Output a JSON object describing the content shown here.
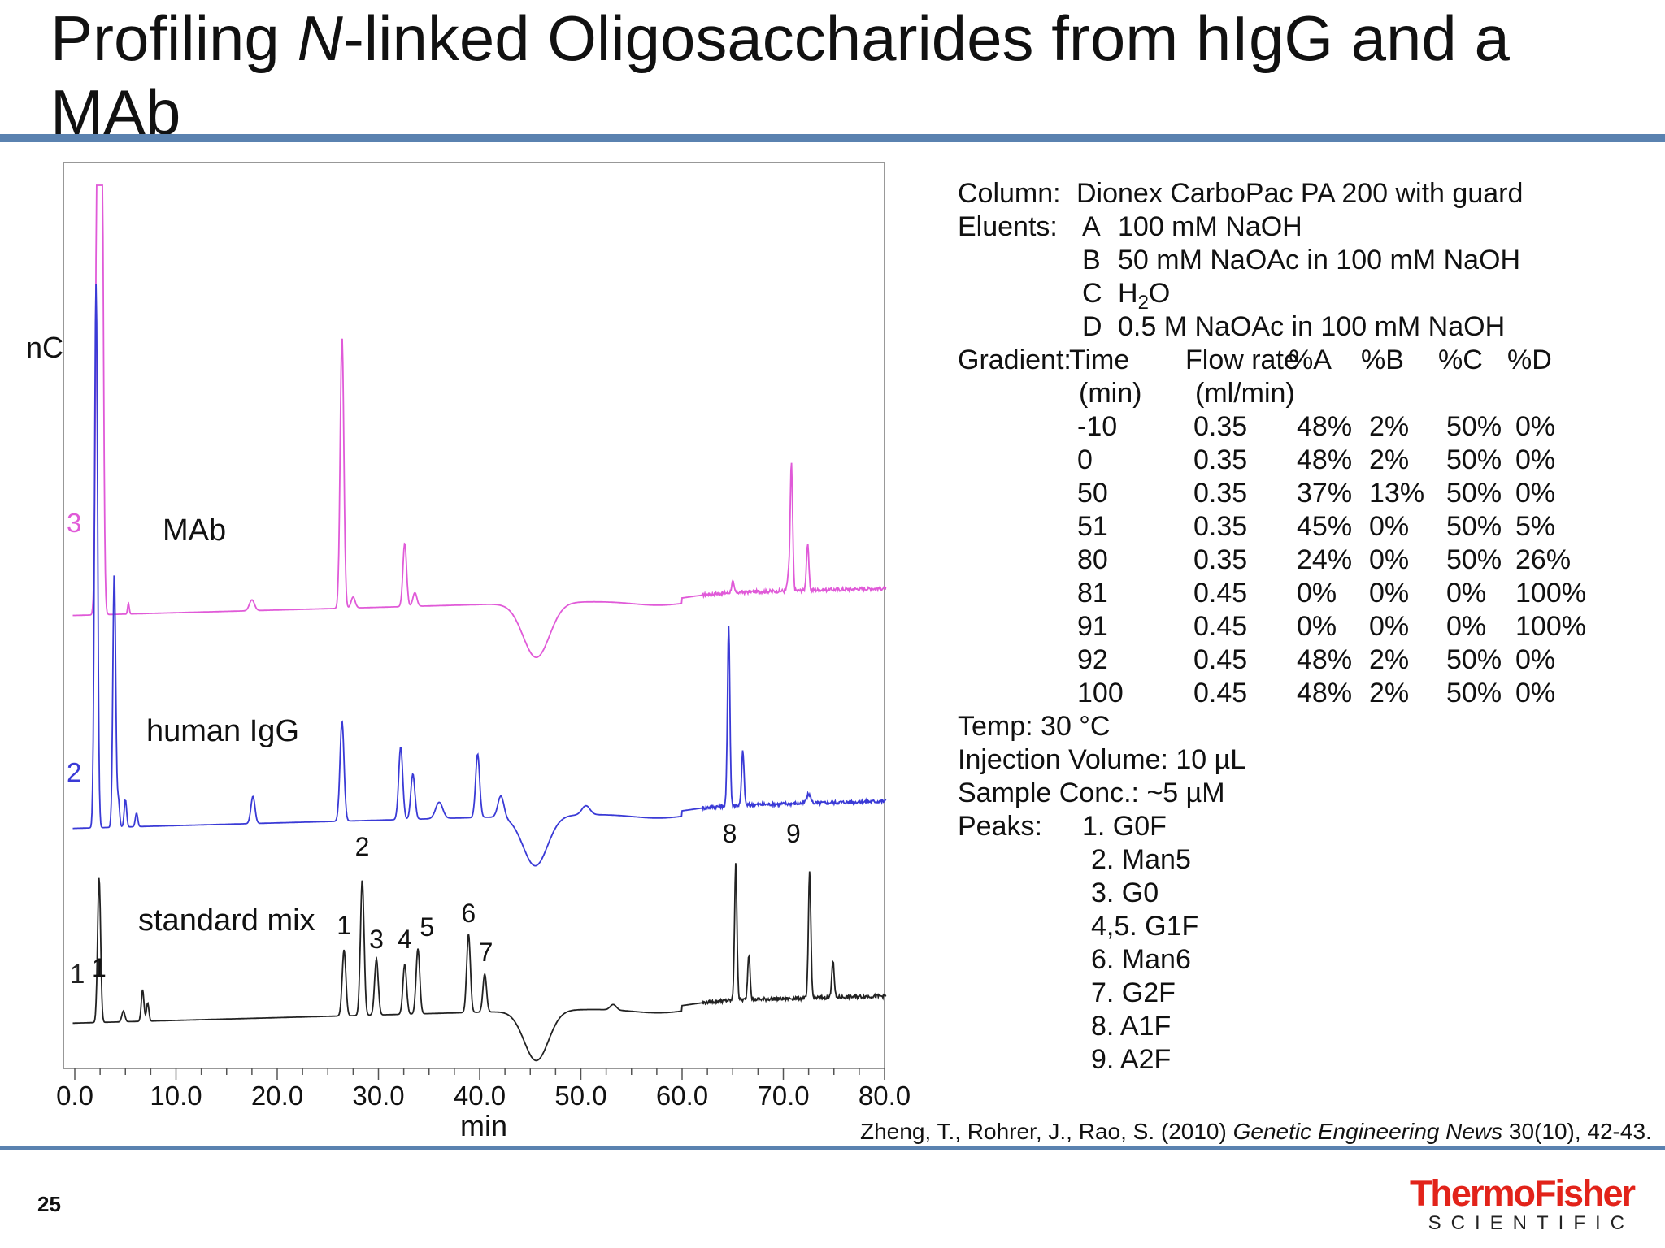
{
  "header": {
    "title_pre": "Profiling ",
    "title_italic": "N",
    "title_post": "-linked Oligosaccharides from hIgG and a MAb"
  },
  "colors": {
    "trace_mab": "#e05ad8",
    "trace_igg": "#3a3ad6",
    "trace_std": "#222222",
    "rule": "#5a82b0",
    "logo_red": "#e2231a"
  },
  "chart_data": {
    "type": "line",
    "title": "",
    "xlabel": "min",
    "ylabel": "nC",
    "xlim": [
      0,
      80
    ],
    "x_ticks": [
      "0.0",
      "10.0",
      "20.0",
      "30.0",
      "40.0",
      "50.0",
      "60.0",
      "70.0",
      "80.0"
    ],
    "series": [
      {
        "number": "3",
        "name": "MAb",
        "color": "#e05ad8",
        "baseline": 0.5,
        "peaks": [
          [
            2.3,
            0.7,
            0.18
          ],
          [
            2.6,
            0.7,
            0.18
          ],
          [
            5.3,
            0.012,
            0.08
          ],
          [
            17.5,
            0.012,
            0.25
          ],
          [
            26.4,
            0.3,
            0.18
          ],
          [
            27.5,
            0.012,
            0.2
          ],
          [
            32.6,
            0.07,
            0.18
          ],
          [
            33.6,
            0.015,
            0.2
          ],
          [
            45.6,
            -0.06,
            1.3
          ],
          [
            65.0,
            0.012,
            0.12
          ],
          [
            70.5,
            0.015,
            0.12
          ],
          [
            70.8,
            0.14,
            0.12
          ],
          [
            72.4,
            0.05,
            0.12
          ]
        ]
      },
      {
        "number": "2",
        "name": "human IgG",
        "color": "#3a3ad6",
        "baseline": 0.265,
        "peaks": [
          [
            2.1,
            0.6,
            0.15
          ],
          [
            3.9,
            0.28,
            0.14
          ],
          [
            4.3,
            0.03,
            0.12
          ],
          [
            5.0,
            0.03,
            0.12
          ],
          [
            6.1,
            0.015,
            0.12
          ],
          [
            17.6,
            0.03,
            0.2
          ],
          [
            26.4,
            0.11,
            0.2
          ],
          [
            32.2,
            0.08,
            0.2
          ],
          [
            33.4,
            0.05,
            0.2
          ],
          [
            36.0,
            0.018,
            0.35
          ],
          [
            39.8,
            0.07,
            0.2
          ],
          [
            42.1,
            0.024,
            0.3
          ],
          [
            45.5,
            -0.055,
            1.2
          ],
          [
            50.5,
            0.01,
            0.4
          ],
          [
            64.6,
            0.2,
            0.12
          ],
          [
            66.0,
            0.06,
            0.12
          ],
          [
            72.5,
            0.01,
            0.2
          ]
        ]
      },
      {
        "number": "1",
        "name": "standard mix",
        "color": "#222222",
        "baseline": 0.05,
        "peaks": [
          [
            2.4,
            0.16,
            0.15
          ],
          [
            4.8,
            0.012,
            0.15
          ],
          [
            6.7,
            0.035,
            0.13
          ],
          [
            7.2,
            0.02,
            0.12
          ],
          [
            26.6,
            0.073,
            0.18
          ],
          [
            28.4,
            0.15,
            0.18
          ],
          [
            29.8,
            0.062,
            0.18
          ],
          [
            32.6,
            0.055,
            0.18
          ],
          [
            33.9,
            0.072,
            0.18
          ],
          [
            38.9,
            0.087,
            0.18
          ],
          [
            40.5,
            0.042,
            0.18
          ],
          [
            45.6,
            -0.055,
            1.2
          ],
          [
            53.2,
            0.006,
            0.3
          ],
          [
            65.3,
            0.15,
            0.12
          ],
          [
            66.6,
            0.05,
            0.12
          ],
          [
            72.6,
            0.14,
            0.12
          ],
          [
            74.9,
            0.04,
            0.12
          ]
        ]
      }
    ],
    "peak_labels": [
      {
        "label": "1",
        "x": 2.4
      },
      {
        "label": "2",
        "x": 28.4
      },
      {
        "label": "1",
        "x": 26.6
      },
      {
        "label": "3",
        "x": 29.8
      },
      {
        "label": "4",
        "x": 32.6
      },
      {
        "label": "5",
        "x": 34.8
      },
      {
        "label": "6",
        "x": 38.9
      },
      {
        "label": "7",
        "x": 40.6
      },
      {
        "label": "8",
        "x": 64.7
      },
      {
        "label": "9",
        "x": 71.0
      }
    ]
  },
  "conditions": {
    "column_label": "Column:",
    "column_value": "Dionex CarboPac PA 200 with guard",
    "eluents_label": "Eluents:",
    "eluents": [
      {
        "key": "A",
        "pre": "100 mM NaOH",
        "sub": "",
        "post": ""
      },
      {
        "key": "B",
        "pre": "50 mM NaOAc in 100 mM NaOH",
        "sub": "",
        "post": ""
      },
      {
        "key": "C",
        "pre": "H",
        "sub": "2",
        "post": "O"
      },
      {
        "key": "D",
        "pre": "0.5 M NaOAc in 100 mM NaOH",
        "sub": "",
        "post": ""
      }
    ],
    "gradient_label": "Gradient:",
    "gradient_headers": [
      "Time",
      "Flow rate",
      "%A",
      "%B",
      "%C",
      "%D"
    ],
    "gradient_units": [
      "(min)",
      "(ml/min)"
    ],
    "gradient_rows": [
      [
        "-10",
        "0.35",
        "48%",
        "2%",
        "50%",
        "0%"
      ],
      [
        "0",
        "0.35",
        "48%",
        "2%",
        "50%",
        "0%"
      ],
      [
        "50",
        "0.35",
        "37%",
        "13%",
        "50%",
        "0%"
      ],
      [
        "51",
        "0.35",
        "45%",
        "0%",
        "50%",
        "5%"
      ],
      [
        "80",
        "0.35",
        "24%",
        "0%",
        "50%",
        "26%"
      ],
      [
        "81",
        "0.45",
        "0%",
        "0%",
        "0%",
        "100%"
      ],
      [
        "91",
        "0.45",
        "0%",
        "0%",
        "0%",
        "100%"
      ],
      [
        "92",
        "0.45",
        "48%",
        "2%",
        "50%",
        "0%"
      ],
      [
        "100",
        "0.45",
        "48%",
        "2%",
        "50%",
        "0%"
      ]
    ],
    "temp": "Temp:  30 °C",
    "injection": "Injection Volume: 10 µL",
    "sample_conc": "Sample Conc.: ~5 µM",
    "peaks_label": "Peaks:",
    "peaks": [
      "1.  G0F",
      "2.  Man5",
      "3.  G0",
      "4,5. G1F",
      "6. Man6",
      "7. G2F",
      "8. A1F",
      "9. A2F"
    ]
  },
  "citation": {
    "pre": "Zheng, T., Rohrer, J., Rao, S. (2010) ",
    "journal": "Genetic Engineering News",
    "post": " 30(10), 42-43."
  },
  "footer": {
    "page_number": "25",
    "logo_top": "ThermoFisher",
    "logo_bottom": "SCIENTIFIC"
  }
}
